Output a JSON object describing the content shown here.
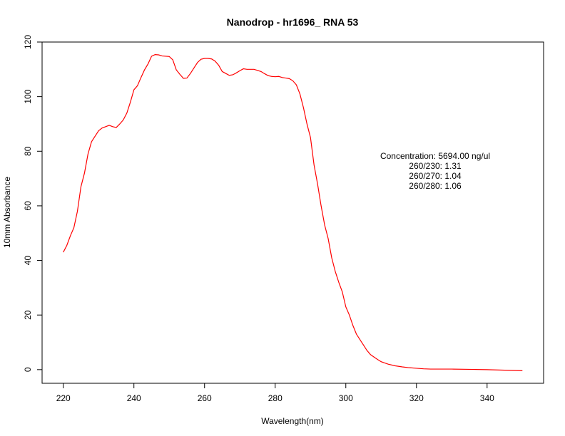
{
  "chart_data": {
    "type": "line",
    "title": "Nanodrop - hr1696_ RNA 53",
    "xlabel": "Wavelength(nm)",
    "ylabel": "10mm Absorbance",
    "xlim": [
      214,
      356
    ],
    "ylim": [
      -5,
      120
    ],
    "xticks": [
      220,
      240,
      260,
      280,
      300,
      320,
      340
    ],
    "yticks": [
      0,
      20,
      40,
      60,
      80,
      100,
      120
    ],
    "grid": false,
    "series": [
      {
        "color": "#ff0000",
        "x": [
          220,
          221,
          222,
          223,
          224,
          225,
          226,
          227,
          228,
          229,
          230,
          231,
          232,
          233,
          234,
          235,
          236,
          237,
          238,
          239,
          240,
          241,
          242,
          243,
          244,
          245,
          246,
          247,
          248,
          249,
          250,
          251,
          252,
          253,
          254,
          255,
          256,
          257,
          258,
          259,
          260,
          261,
          262,
          263,
          264,
          265,
          266,
          267,
          268,
          269,
          270,
          271,
          272,
          273,
          274,
          275,
          276,
          277,
          278,
          279,
          280,
          281,
          282,
          283,
          284,
          285,
          286,
          287,
          288,
          289,
          290,
          291,
          292,
          293,
          294,
          295,
          296,
          297,
          298,
          299,
          300,
          301,
          302,
          303,
          304,
          305,
          306,
          307,
          308,
          309,
          310,
          312,
          314,
          316,
          318,
          320,
          322,
          324,
          326,
          328,
          330,
          335,
          340,
          345,
          350
        ],
        "y": [
          43,
          45.5,
          49,
          52,
          58,
          67,
          72,
          79,
          83.5,
          85.5,
          87.5,
          88.5,
          89,
          89.5,
          89,
          88.7,
          90,
          91.5,
          94,
          98,
          102.5,
          104,
          107,
          109.8,
          112,
          114.8,
          115.4,
          115.3,
          114.9,
          114.8,
          114.7,
          113.5,
          109.8,
          108.2,
          106.7,
          106.8,
          108.5,
          110.5,
          112.5,
          113.7,
          114,
          114,
          113.8,
          113,
          111.5,
          109.2,
          108.5,
          107.8,
          108,
          108.7,
          109.5,
          110.2,
          110,
          110,
          110,
          109.6,
          109.2,
          108.4,
          107.7,
          107.4,
          107.3,
          107.4,
          107,
          106.8,
          106.6,
          105.8,
          104.3,
          101,
          96,
          90,
          85,
          75,
          68,
          60,
          53,
          48,
          41,
          36,
          32,
          28.5,
          23,
          20,
          16.2,
          13,
          11,
          9,
          7,
          5.5,
          4.6,
          3.7,
          2.9,
          2,
          1.4,
          1,
          0.7,
          0.5,
          0.3,
          0.2,
          0.2,
          0.2,
          0.2,
          0.1,
          0,
          -0.2,
          -0.4
        ]
      }
    ],
    "annotation": {
      "lines": [
        "Concentration: 5694.00 ng/ul",
        "260/230: 1.31",
        "260/270: 1.04",
        "260/280: 1.06"
      ]
    }
  }
}
